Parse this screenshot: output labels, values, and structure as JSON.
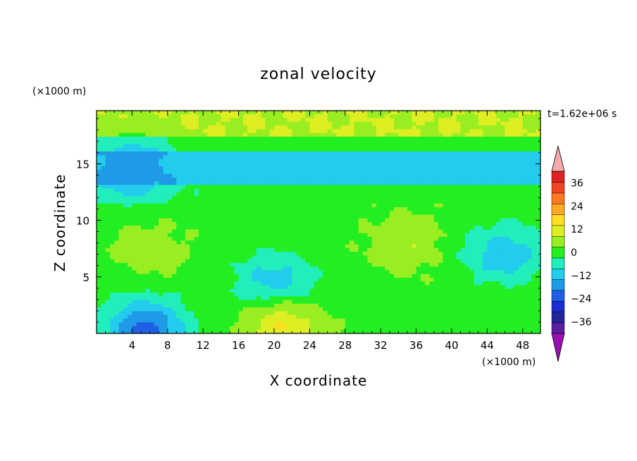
{
  "chart_data": {
    "type": "heatmap",
    "title": "zonal velocity",
    "xlabel": "X coordinate",
    "ylabel": "Z coordinate",
    "x_unit": "(×1000 m)",
    "y_unit": "(×1000 m)",
    "time_label": "t=1.62e+06 s",
    "xlim": [
      0,
      50
    ],
    "ylim": [
      0,
      19.7
    ],
    "x_ticks": [
      4,
      8,
      12,
      16,
      20,
      24,
      28,
      32,
      36,
      40,
      44,
      48
    ],
    "x_tick_labels": [
      "4",
      "8",
      "12",
      "16",
      "20",
      "24",
      "28",
      "32",
      "36",
      "40",
      "44",
      "48"
    ],
    "y_ticks": [
      5,
      10,
      15
    ],
    "y_tick_labels": [
      "5",
      "10",
      "15"
    ],
    "colorbar": {
      "levels": [
        -42,
        -36,
        -30,
        -24,
        -18,
        -12,
        -6,
        0,
        6,
        12,
        18,
        24,
        30,
        36,
        42
      ],
      "tick_values": [
        -36,
        -24,
        -12,
        0,
        12,
        24,
        36
      ],
      "tick_labels": [
        "−36",
        "−24",
        "−12",
        "0",
        "12",
        "24",
        "36"
      ],
      "colors": [
        "#5a1fa0",
        "#23239a",
        "#1a2ecf",
        "#1f5fe6",
        "#1f9ae6",
        "#22ccec",
        "#22eebb",
        "#22ee22",
        "#99ee22",
        "#ddee22",
        "#ffdd22",
        "#ffaa22",
        "#ff7722",
        "#ee4422",
        "#dd2222"
      ],
      "under_color": "#9a10b0",
      "over_color": "#f4aaaa",
      "extend": "both"
    },
    "field_description_values": {
      "z_bands": [
        {
          "z": [
            17.5,
            19.7
          ],
          "u": 12
        },
        {
          "z": [
            16.2,
            17.5
          ],
          "u": 3
        },
        {
          "z": [
            13.2,
            16.2
          ],
          "u": -9
        },
        {
          "z": [
            11.5,
            13.2
          ],
          "u": 2
        },
        {
          "z": [
            0.0,
            11.5
          ],
          "u": 4
        }
      ],
      "blobs": [
        {
          "x": 6,
          "z": 7.5,
          "u": 9
        },
        {
          "x": 20,
          "z": 4.5,
          "u": -10
        },
        {
          "x": 21,
          "z": 0.3,
          "u": 18
        },
        {
          "x": 35,
          "z": 8,
          "u": 11
        },
        {
          "x": 46,
          "z": 7,
          "u": -10
        },
        {
          "x": 5.5,
          "z": 0.4,
          "u": -20
        },
        {
          "x": 4,
          "z": 14.5,
          "u": -16
        }
      ]
    }
  }
}
